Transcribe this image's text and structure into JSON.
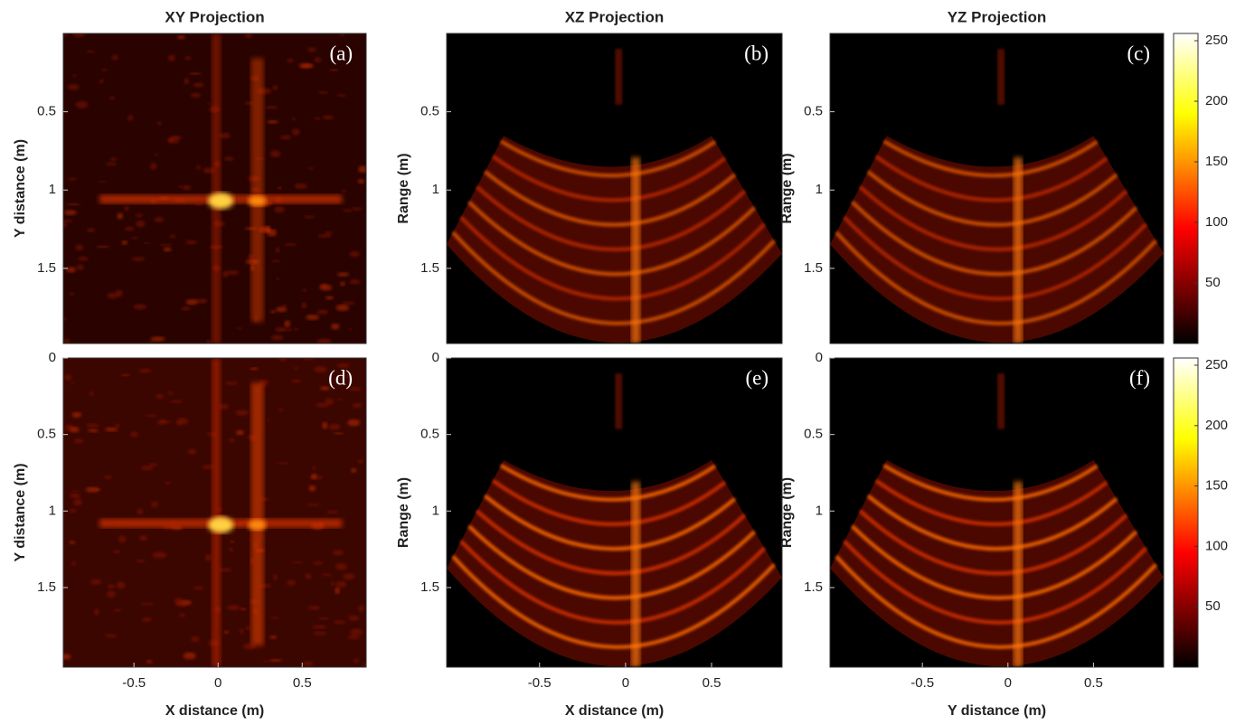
{
  "chart_data": [
    {
      "type": "heatmap",
      "title": "XY Projection",
      "panel_label": "(a)",
      "ylabel": "Y distance (m)",
      "xlim": [
        -0.92,
        0.88
      ],
      "ylim": [
        0,
        1.98
      ],
      "y_reversed": true,
      "yticks": [
        0.5,
        1,
        1.5
      ]
    },
    {
      "type": "heatmap",
      "title": "XZ Projection",
      "panel_label": "(b)",
      "ylabel": "Range (m)",
      "xlim": [
        -1.04,
        0.91
      ],
      "ylim": [
        0,
        1.98
      ],
      "y_reversed": true,
      "yticks": [
        0.5,
        1,
        1.5
      ]
    },
    {
      "type": "heatmap",
      "title": "YZ Projection",
      "panel_label": "(c)",
      "ylabel": "Range (m)",
      "xlim": [
        -1.04,
        0.91
      ],
      "ylim": [
        0,
        1.98
      ],
      "y_reversed": true,
      "yticks": [
        0.5,
        1,
        1.5
      ]
    },
    {
      "type": "colorbar",
      "colormap": "hot",
      "lim": [
        0,
        256
      ],
      "ticks": [
        50,
        100,
        150,
        200,
        250
      ]
    },
    {
      "type": "heatmap",
      "panel_label": "(d)",
      "xlabel": "X distance (m)",
      "ylabel": "Y distance (m)",
      "xlim": [
        -0.92,
        0.88
      ],
      "ylim": [
        0,
        2.02
      ],
      "y_reversed": true,
      "xticks": [
        -0.5,
        0,
        0.5
      ],
      "yticks": [
        0,
        0.5,
        1,
        1.5
      ]
    },
    {
      "type": "heatmap",
      "panel_label": "(e)",
      "xlabel": "X distance (m)",
      "ylabel": "Range (m)",
      "xlim": [
        -1.04,
        0.91
      ],
      "ylim": [
        0,
        2.02
      ],
      "y_reversed": true,
      "xticks": [
        -0.5,
        0,
        0.5
      ],
      "yticks": [
        0,
        0.5,
        1,
        1.5
      ]
    },
    {
      "type": "heatmap",
      "panel_label": "(f)",
      "xlabel": "Y distance (m)",
      "ylabel": "Range (m)",
      "xlim": [
        -1.04,
        0.91
      ],
      "ylim": [
        0,
        2.02
      ],
      "y_reversed": true,
      "xticks": [
        -0.5,
        0,
        0.5
      ],
      "yticks": [
        0,
        0.5,
        1,
        1.5
      ]
    },
    {
      "type": "colorbar",
      "colormap": "hot",
      "lim": [
        0,
        256
      ],
      "ticks": [
        50,
        100,
        150,
        200,
        250
      ]
    }
  ]
}
